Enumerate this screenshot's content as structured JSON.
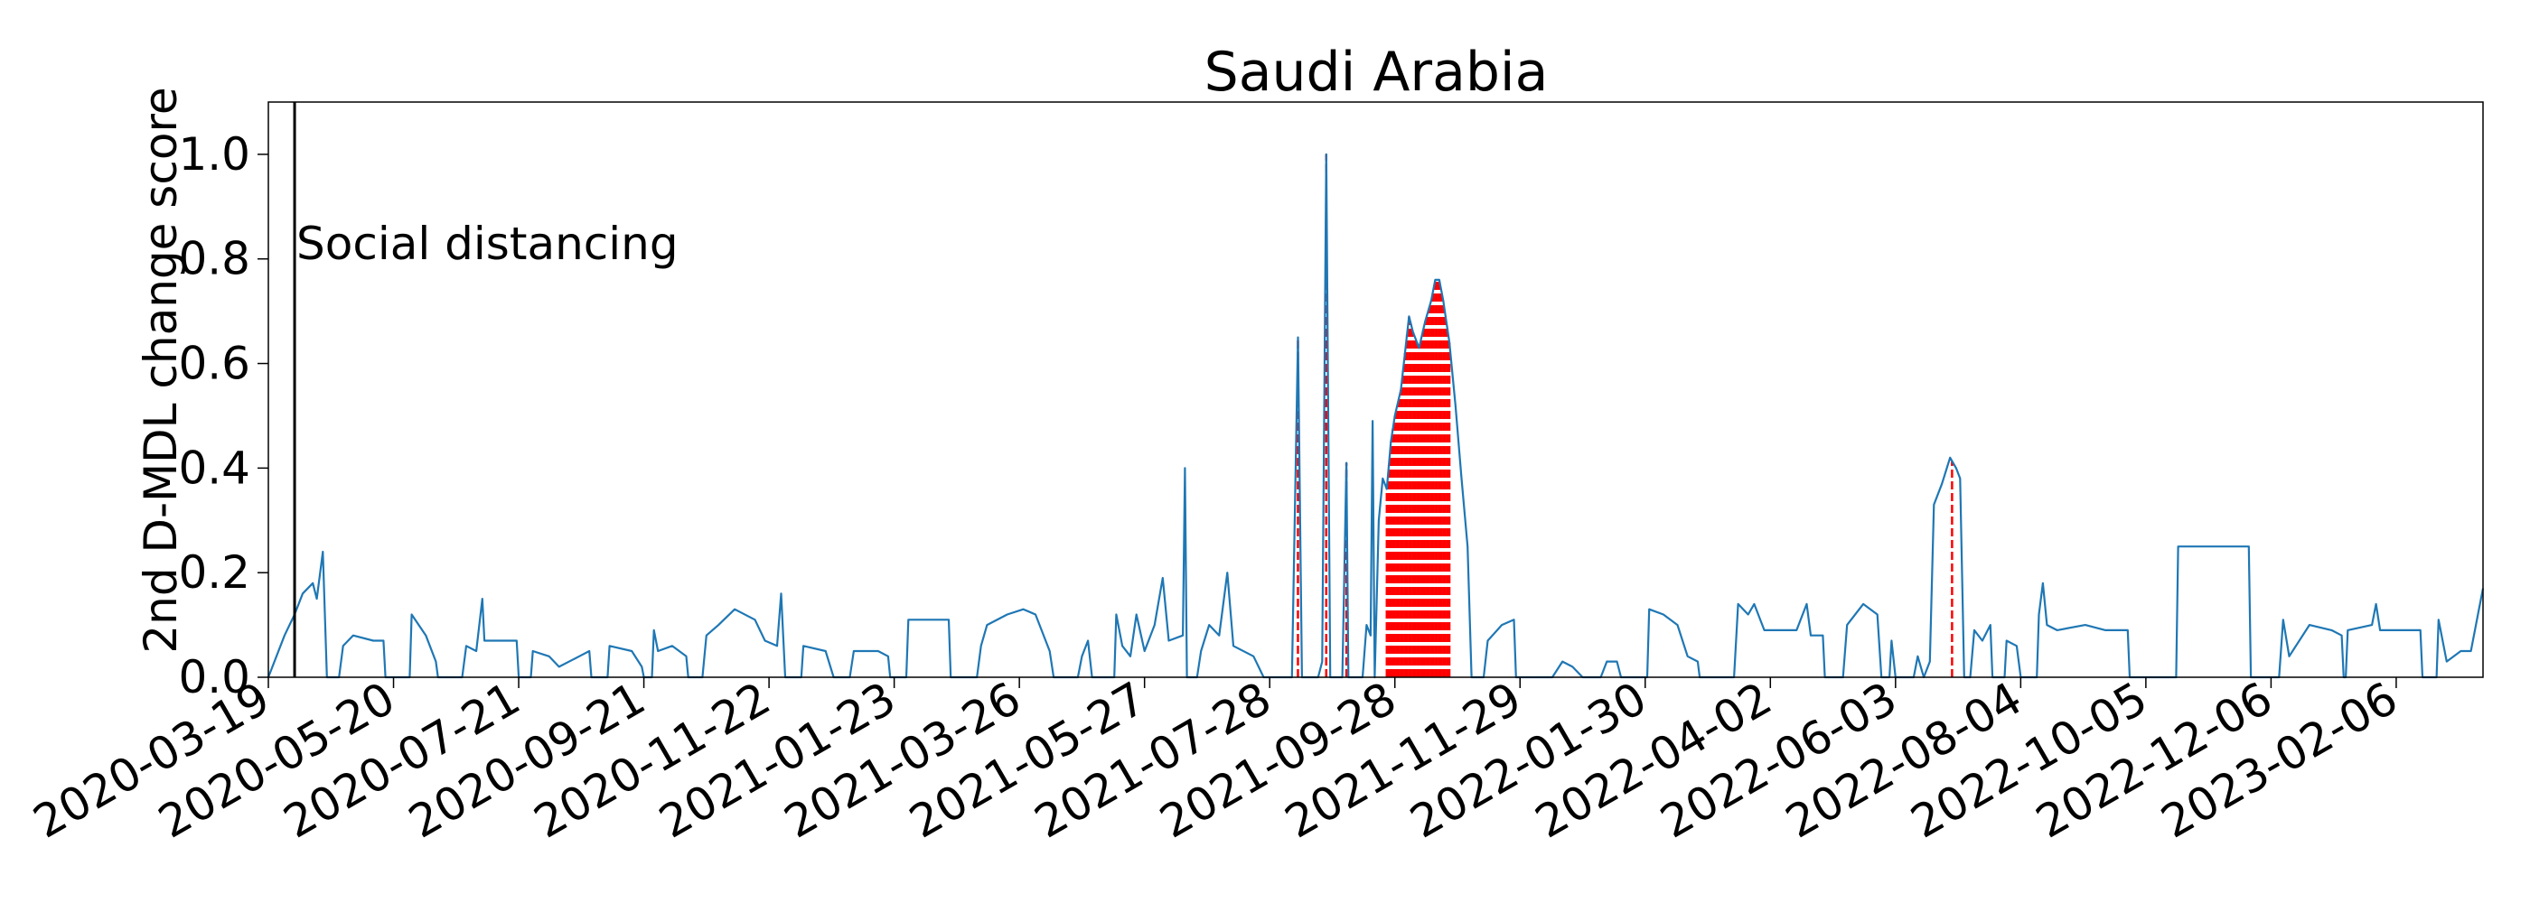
{
  "chart_data": {
    "type": "line",
    "title": "Saudi Arabia",
    "xlabel": "",
    "ylabel": "2nd D-MDL change score",
    "xlim": [
      "2020-03-19",
      "2023-03-21"
    ],
    "ylim": [
      0,
      1.1
    ],
    "x_ticks": [
      "2020-03-19",
      "2020-05-20",
      "2020-07-21",
      "2020-09-21",
      "2020-11-22",
      "2021-01-23",
      "2021-03-26",
      "2021-05-27",
      "2021-07-28",
      "2021-09-28",
      "2021-11-29",
      "2022-01-30",
      "2022-04-02",
      "2022-06-03",
      "2022-08-04",
      "2022-10-05",
      "2022-12-06",
      "2023-02-06"
    ],
    "y_ticks": [
      "0.0",
      "0.2",
      "0.4",
      "0.6",
      "0.8",
      "1.0"
    ],
    "grid": false,
    "line_color": "#1f77b4",
    "alarm_color": "#ff0000",
    "event": {
      "date": "2020-04-01",
      "label": "Social distancing",
      "color": "#000000"
    },
    "series": [
      {
        "points": [
          [
            "2020-03-19",
            0.0
          ],
          [
            "2020-03-27",
            0.08
          ],
          [
            "2020-04-01",
            0.12
          ],
          [
            "2020-04-05",
            0.16
          ],
          [
            "2020-04-10",
            0.18
          ],
          [
            "2020-04-12",
            0.15
          ],
          [
            "2020-04-15",
            0.24
          ],
          [
            "2020-04-17",
            0.0
          ],
          [
            "2020-04-23",
            0.0
          ],
          [
            "2020-04-25",
            0.06
          ],
          [
            "2020-04-30",
            0.08
          ],
          [
            "2020-05-10",
            0.07
          ],
          [
            "2020-05-15",
            0.07
          ],
          [
            "2020-05-16",
            0.0
          ],
          [
            "2020-05-28",
            0.0
          ],
          [
            "2020-05-29",
            0.12
          ],
          [
            "2020-06-05",
            0.08
          ],
          [
            "2020-06-10",
            0.03
          ],
          [
            "2020-06-11",
            0.0
          ],
          [
            "2020-06-23",
            0.0
          ],
          [
            "2020-06-25",
            0.06
          ],
          [
            "2020-06-30",
            0.05
          ],
          [
            "2020-07-03",
            0.15
          ],
          [
            "2020-07-04",
            0.07
          ],
          [
            "2020-07-20",
            0.07
          ],
          [
            "2020-07-21",
            0.0
          ],
          [
            "2020-07-27",
            0.0
          ],
          [
            "2020-07-28",
            0.05
          ],
          [
            "2020-08-05",
            0.04
          ],
          [
            "2020-08-10",
            0.02
          ],
          [
            "2020-08-20",
            0.04
          ],
          [
            "2020-08-25",
            0.05
          ],
          [
            "2020-08-26",
            0.0
          ],
          [
            "2020-09-03",
            0.0
          ],
          [
            "2020-09-04",
            0.06
          ],
          [
            "2020-09-15",
            0.05
          ],
          [
            "2020-09-20",
            0.02
          ],
          [
            "2020-09-21",
            0.0
          ],
          [
            "2020-09-25",
            0.0
          ],
          [
            "2020-09-26",
            0.09
          ],
          [
            "2020-09-28",
            0.05
          ],
          [
            "2020-10-05",
            0.06
          ],
          [
            "2020-10-12",
            0.04
          ],
          [
            "2020-10-13",
            0.0
          ],
          [
            "2020-10-20",
            0.0
          ],
          [
            "2020-10-22",
            0.08
          ],
          [
            "2020-10-28",
            0.1
          ],
          [
            "2020-11-05",
            0.13
          ],
          [
            "2020-11-15",
            0.11
          ],
          [
            "2020-11-20",
            0.07
          ],
          [
            "2020-11-26",
            0.06
          ],
          [
            "2020-11-28",
            0.16
          ],
          [
            "2020-11-30",
            0.0
          ],
          [
            "2020-12-08",
            0.0
          ],
          [
            "2020-12-09",
            0.06
          ],
          [
            "2020-12-20",
            0.05
          ],
          [
            "2020-12-24",
            0.0
          ],
          [
            "2021-01-01",
            0.0
          ],
          [
            "2021-01-03",
            0.05
          ],
          [
            "2021-01-15",
            0.05
          ],
          [
            "2021-01-20",
            0.04
          ],
          [
            "2021-01-21",
            0.0
          ],
          [
            "2021-01-29",
            0.0
          ],
          [
            "2021-01-30",
            0.11
          ],
          [
            "2021-02-10",
            0.11
          ],
          [
            "2021-02-19",
            0.11
          ],
          [
            "2021-02-20",
            0.0
          ],
          [
            "2021-03-05",
            0.0
          ],
          [
            "2021-03-07",
            0.06
          ],
          [
            "2021-03-10",
            0.1
          ],
          [
            "2021-03-20",
            0.12
          ],
          [
            "2021-03-28",
            0.13
          ],
          [
            "2021-04-03",
            0.12
          ],
          [
            "2021-04-10",
            0.05
          ],
          [
            "2021-04-12",
            0.0
          ],
          [
            "2021-04-24",
            0.0
          ],
          [
            "2021-04-26",
            0.04
          ],
          [
            "2021-04-29",
            0.07
          ],
          [
            "2021-05-01",
            0.0
          ],
          [
            "2021-05-12",
            0.0
          ],
          [
            "2021-05-13",
            0.12
          ],
          [
            "2021-05-16",
            0.06
          ],
          [
            "2021-05-20",
            0.04
          ],
          [
            "2021-05-23",
            0.12
          ],
          [
            "2021-05-27",
            0.05
          ],
          [
            "2021-06-01",
            0.1
          ],
          [
            "2021-06-05",
            0.19
          ],
          [
            "2021-06-08",
            0.07
          ],
          [
            "2021-06-15",
            0.08
          ],
          [
            "2021-06-16",
            0.4
          ],
          [
            "2021-06-17",
            0.0
          ],
          [
            "2021-06-22",
            0.0
          ],
          [
            "2021-06-24",
            0.05
          ],
          [
            "2021-06-28",
            0.1
          ],
          [
            "2021-07-03",
            0.08
          ],
          [
            "2021-07-07",
            0.2
          ],
          [
            "2021-07-10",
            0.06
          ],
          [
            "2021-07-20",
            0.04
          ],
          [
            "2021-07-25",
            0.0
          ],
          [
            "2021-08-08",
            0.0
          ],
          [
            "2021-08-11",
            0.65
          ],
          [
            "2021-08-13",
            0.0
          ],
          [
            "2021-08-21",
            0.0
          ],
          [
            "2021-08-23",
            0.03
          ],
          [
            "2021-08-25",
            1.0
          ],
          [
            "2021-08-27",
            0.0
          ],
          [
            "2021-09-02",
            0.0
          ],
          [
            "2021-09-04",
            0.41
          ],
          [
            "2021-09-05",
            0.0
          ],
          [
            "2021-09-12",
            0.0
          ],
          [
            "2021-09-14",
            0.1
          ],
          [
            "2021-09-16",
            0.08
          ],
          [
            "2021-09-17",
            0.49
          ],
          [
            "2021-09-18",
            0.0
          ],
          [
            "2021-09-20",
            0.3
          ],
          [
            "2021-09-22",
            0.38
          ],
          [
            "2021-09-24",
            0.36
          ],
          [
            "2021-09-26",
            0.45
          ],
          [
            "2021-09-28",
            0.5
          ],
          [
            "2021-10-01",
            0.55
          ],
          [
            "2021-10-03",
            0.62
          ],
          [
            "2021-10-05",
            0.69
          ],
          [
            "2021-10-07",
            0.66
          ],
          [
            "2021-10-10",
            0.63
          ],
          [
            "2021-10-13",
            0.68
          ],
          [
            "2021-10-16",
            0.72
          ],
          [
            "2021-10-18",
            0.76
          ],
          [
            "2021-10-20",
            0.76
          ],
          [
            "2021-10-22",
            0.72
          ],
          [
            "2021-10-25",
            0.64
          ],
          [
            "2021-10-28",
            0.52
          ],
          [
            "2021-10-31",
            0.38
          ],
          [
            "2021-11-03",
            0.25
          ],
          [
            "2021-11-05",
            0.0
          ],
          [
            "2021-11-11",
            0.0
          ],
          [
            "2021-11-13",
            0.07
          ],
          [
            "2021-11-20",
            0.1
          ],
          [
            "2021-11-26",
            0.11
          ],
          [
            "2021-11-27",
            0.0
          ],
          [
            "2021-12-15",
            0.0
          ],
          [
            "2021-12-20",
            0.03
          ],
          [
            "2021-12-25",
            0.02
          ],
          [
            "2021-12-30",
            0.0
          ],
          [
            "2022-01-08",
            0.0
          ],
          [
            "2022-01-11",
            0.03
          ],
          [
            "2022-01-16",
            0.03
          ],
          [
            "2022-01-18",
            0.0
          ],
          [
            "2022-01-31",
            0.0
          ],
          [
            "2022-02-01",
            0.13
          ],
          [
            "2022-02-08",
            0.12
          ],
          [
            "2022-02-15",
            0.1
          ],
          [
            "2022-02-20",
            0.04
          ],
          [
            "2022-02-25",
            0.03
          ],
          [
            "2022-02-26",
            0.0
          ],
          [
            "2022-03-15",
            0.0
          ],
          [
            "2022-03-17",
            0.14
          ],
          [
            "2022-03-22",
            0.12
          ],
          [
            "2022-03-25",
            0.14
          ],
          [
            "2022-03-30",
            0.09
          ],
          [
            "2022-04-15",
            0.09
          ],
          [
            "2022-04-20",
            0.14
          ],
          [
            "2022-04-22",
            0.08
          ],
          [
            "2022-04-28",
            0.08
          ],
          [
            "2022-04-29",
            0.0
          ],
          [
            "2022-05-08",
            0.0
          ],
          [
            "2022-05-10",
            0.1
          ],
          [
            "2022-05-18",
            0.14
          ],
          [
            "2022-05-25",
            0.12
          ],
          [
            "2022-05-27",
            0.0
          ],
          [
            "2022-05-31",
            0.0
          ],
          [
            "2022-06-01",
            0.07
          ],
          [
            "2022-06-03",
            0.0
          ],
          [
            "2022-06-12",
            0.0
          ],
          [
            "2022-06-14",
            0.04
          ],
          [
            "2022-06-17",
            0.0
          ],
          [
            "2022-06-20",
            0.03
          ],
          [
            "2022-06-22",
            0.33
          ],
          [
            "2022-06-26",
            0.37
          ],
          [
            "2022-06-30",
            0.42
          ],
          [
            "2022-07-03",
            0.4
          ],
          [
            "2022-07-05",
            0.38
          ],
          [
            "2022-07-07",
            0.0
          ],
          [
            "2022-07-10",
            0.0
          ],
          [
            "2022-07-12",
            0.09
          ],
          [
            "2022-07-16",
            0.07
          ],
          [
            "2022-07-20",
            0.1
          ],
          [
            "2022-07-21",
            0.0
          ],
          [
            "2022-07-27",
            0.0
          ],
          [
            "2022-07-28",
            0.07
          ],
          [
            "2022-08-02",
            0.06
          ],
          [
            "2022-08-04",
            0.0
          ],
          [
            "2022-08-12",
            0.0
          ],
          [
            "2022-08-13",
            0.12
          ],
          [
            "2022-08-15",
            0.18
          ],
          [
            "2022-08-17",
            0.1
          ],
          [
            "2022-08-22",
            0.09
          ],
          [
            "2022-09-05",
            0.1
          ],
          [
            "2022-09-15",
            0.09
          ],
          [
            "2022-09-26",
            0.09
          ],
          [
            "2022-09-27",
            0.0
          ],
          [
            "2022-10-20",
            0.0
          ],
          [
            "2022-10-21",
            0.25
          ],
          [
            "2022-11-10",
            0.25
          ],
          [
            "2022-11-25",
            0.25
          ],
          [
            "2022-11-26",
            0.0
          ],
          [
            "2022-12-10",
            0.0
          ],
          [
            "2022-12-12",
            0.11
          ],
          [
            "2022-12-15",
            0.04
          ],
          [
            "2022-12-25",
            0.1
          ],
          [
            "2023-01-05",
            0.09
          ],
          [
            "2023-01-10",
            0.08
          ],
          [
            "2023-01-11",
            0.0
          ],
          [
            "2023-01-12",
            0.0
          ],
          [
            "2023-01-13",
            0.09
          ],
          [
            "2023-01-25",
            0.1
          ],
          [
            "2023-01-27",
            0.14
          ],
          [
            "2023-01-29",
            0.09
          ],
          [
            "2023-02-18",
            0.09
          ],
          [
            "2023-02-19",
            0.0
          ],
          [
            "2023-02-26",
            0.0
          ],
          [
            "2023-02-27",
            0.11
          ],
          [
            "2023-03-03",
            0.03
          ],
          [
            "2023-03-10",
            0.05
          ],
          [
            "2023-03-15",
            0.05
          ],
          [
            "2023-03-19",
            0.13
          ],
          [
            "2023-03-21",
            0.17
          ]
        ]
      }
    ],
    "alarms": [
      "2021-08-11",
      "2021-08-25",
      "2021-09-04",
      "2021-09-18",
      "2021-09-24",
      "2021-09-25",
      "2021-09-26",
      "2021-09-27",
      "2021-09-28",
      "2021-09-29",
      "2021-09-30",
      "2021-10-01",
      "2021-10-02",
      "2021-10-03",
      "2021-10-04",
      "2021-10-05",
      "2021-10-06",
      "2021-10-07",
      "2021-10-08",
      "2021-10-09",
      "2021-10-10",
      "2021-10-11",
      "2021-10-12",
      "2021-10-13",
      "2021-10-14",
      "2021-10-15",
      "2021-10-16",
      "2021-10-17",
      "2021-10-18",
      "2021-10-19",
      "2021-10-20",
      "2021-10-21",
      "2021-10-22",
      "2021-10-23",
      "2021-10-24",
      "2021-10-25",
      "2022-07-01"
    ]
  }
}
